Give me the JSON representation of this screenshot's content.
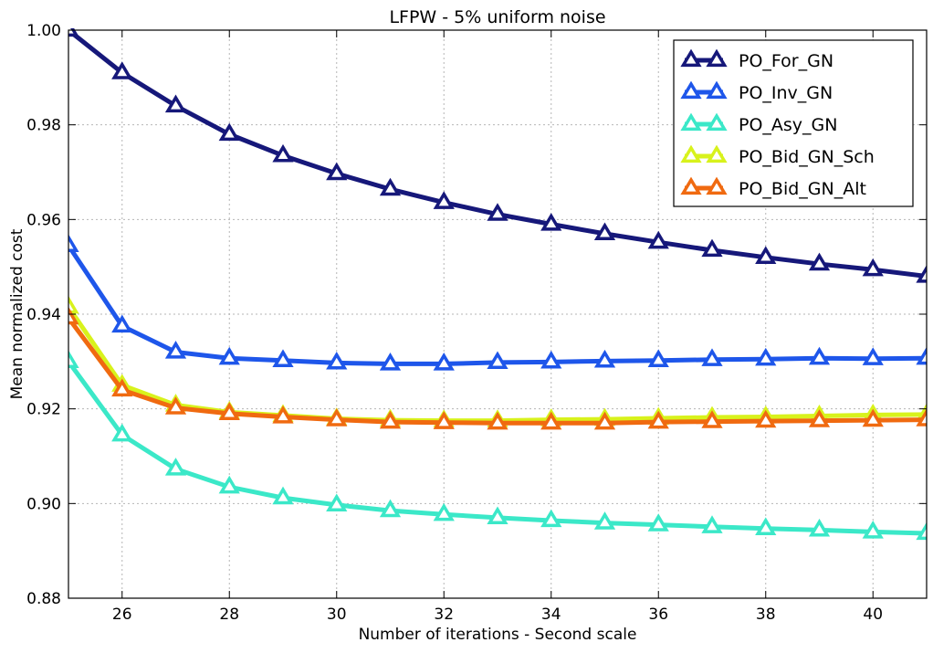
{
  "chart_data": {
    "type": "line",
    "title": "LFPW - 5% uniform noise",
    "xlabel": "Number of iterations - Second scale",
    "ylabel": "Mean normalized cost",
    "xlim": [
      25,
      41
    ],
    "ylim": [
      0.88,
      1.0
    ],
    "xticks": [
      26,
      28,
      30,
      32,
      34,
      36,
      38,
      40
    ],
    "xtick_labels": [
      "26",
      "28",
      "30",
      "32",
      "34",
      "36",
      "38",
      "40"
    ],
    "yticks": [
      0.88,
      0.9,
      0.92,
      0.94,
      0.96,
      0.98,
      1.0
    ],
    "ytick_labels": [
      "0.88",
      "0.90",
      "0.92",
      "0.94",
      "0.96",
      "0.98",
      "1.00"
    ],
    "grid": true,
    "legend_position": "top-right",
    "x": [
      25,
      26,
      27,
      28,
      29,
      30,
      31,
      32,
      33,
      34,
      35,
      36,
      37,
      38,
      39,
      40,
      41
    ],
    "series": [
      {
        "name": "PO_For_GN",
        "color": "#16187a",
        "values": [
          1.0,
          0.991,
          0.984,
          0.978,
          0.9735,
          0.9697,
          0.9664,
          0.9636,
          0.9611,
          0.959,
          0.957,
          0.9552,
          0.9535,
          0.952,
          0.9506,
          0.9494,
          0.948
        ]
      },
      {
        "name": "PO_Inv_GN",
        "color": "#1e56ea",
        "values": [
          0.9545,
          0.9375,
          0.932,
          0.9307,
          0.9302,
          0.9297,
          0.9295,
          0.9295,
          0.9298,
          0.9299,
          0.9301,
          0.9302,
          0.9304,
          0.9305,
          0.9307,
          0.9306,
          0.9307
        ]
      },
      {
        "name": "PO_Asy_GN",
        "color": "#3be8c8",
        "values": [
          0.93,
          0.9145,
          0.9073,
          0.9035,
          0.9012,
          0.8997,
          0.8985,
          0.8977,
          0.897,
          0.8964,
          0.8959,
          0.8955,
          0.8951,
          0.8947,
          0.8944,
          0.894,
          0.8937
        ]
      },
      {
        "name": "PO_Bid_GN_Sch",
        "color": "#d8f21c",
        "values": [
          0.9415,
          0.925,
          0.9208,
          0.9193,
          0.9186,
          0.9179,
          0.9176,
          0.9175,
          0.9175,
          0.9177,
          0.9178,
          0.918,
          0.9182,
          0.9183,
          0.9185,
          0.9187,
          0.9188
        ]
      },
      {
        "name": "PO_Bid_GN_Alt",
        "color": "#f06a10",
        "values": [
          0.9392,
          0.924,
          0.9202,
          0.919,
          0.9183,
          0.9177,
          0.9172,
          0.9171,
          0.917,
          0.917,
          0.917,
          0.9172,
          0.9173,
          0.9174,
          0.9175,
          0.9176,
          0.9177
        ]
      }
    ]
  }
}
